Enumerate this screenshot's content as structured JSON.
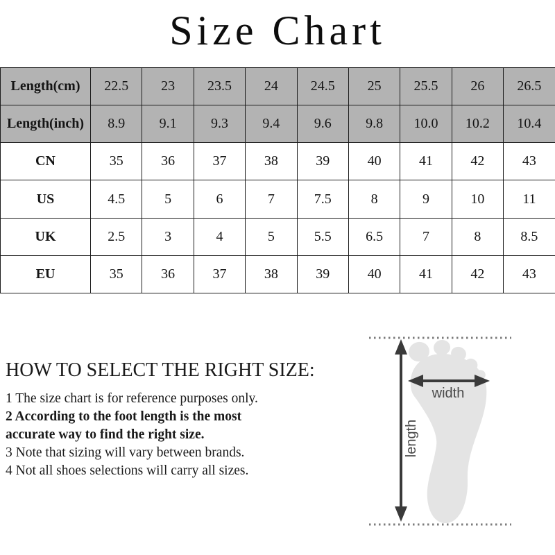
{
  "title": "Size Chart",
  "table": {
    "rows": [
      {
        "label": "Length(cm)",
        "gray": true,
        "values": [
          "22.5",
          "23",
          "23.5",
          "24",
          "24.5",
          "25",
          "25.5",
          "26",
          "26.5"
        ]
      },
      {
        "label": "Length(inch)",
        "gray": true,
        "values": [
          "8.9",
          "9.1",
          "9.3",
          "9.4",
          "9.6",
          "9.8",
          "10.0",
          "10.2",
          "10.4"
        ]
      },
      {
        "label": "CN",
        "gray": false,
        "values": [
          "35",
          "36",
          "37",
          "38",
          "39",
          "40",
          "41",
          "42",
          "43"
        ]
      },
      {
        "label": "US",
        "gray": false,
        "values": [
          "4.5",
          "5",
          "6",
          "7",
          "7.5",
          "8",
          "9",
          "10",
          "11"
        ]
      },
      {
        "label": "UK",
        "gray": false,
        "values": [
          "2.5",
          "3",
          "4",
          "5",
          "5.5",
          "6.5",
          "7",
          "8",
          "8.5"
        ]
      },
      {
        "label": "EU",
        "gray": false,
        "values": [
          "35",
          "36",
          "37",
          "38",
          "39",
          "40",
          "41",
          "42",
          "43"
        ]
      }
    ]
  },
  "guide": {
    "heading": "HOW TO SELECT THE RIGHT SIZE:",
    "notes": [
      {
        "text": "1 The size chart is for reference purposes only.",
        "bold": false
      },
      {
        "text": "2 According to the foot length is the most accurate way to find the right size.",
        "bold": true
      },
      {
        "text": "3 Note that sizing will vary between brands.",
        "bold": false
      },
      {
        "text": "4 Not all shoes selections will carry all sizes.",
        "bold": false
      }
    ]
  },
  "diagram": {
    "width_label": "width",
    "length_label": "length",
    "foot_color": "#e4e4e4",
    "arrow_color": "#3a3a3a",
    "dot_color": "#7c7c7c"
  },
  "colors": {
    "header_row_bg": "#b3b3b3",
    "table_border": "#1c1c1c",
    "text": "#1a1a1a"
  }
}
